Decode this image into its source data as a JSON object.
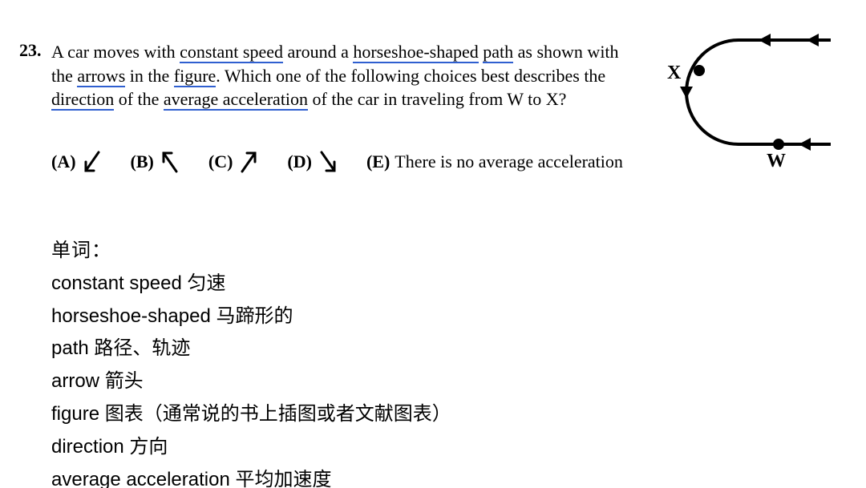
{
  "question": {
    "number": "23.",
    "line1_a": "A car moves with ",
    "line1_b": "constant speed",
    "line1_c": " around a ",
    "line1_d": "horseshoe-shaped",
    "line1_e": " ",
    "line1_f": "path",
    "line1_g": " as shown with",
    "line2_a": "the ",
    "line2_b": "arrows",
    "line2_c": " in the ",
    "line2_d": "figure",
    "line2_e": ".  Which one of the following choices best describes the",
    "line3_a": "direction",
    "line3_b": " of the ",
    "line3_c": "average acceleration",
    "line3_d": " of the car in traveling from W to X?",
    "underline_color": "#2f5fd0"
  },
  "choices": {
    "A_label": "(A)",
    "B_label": "(B)",
    "C_label": "(C)",
    "D_label": "(D)",
    "E_label": "(E)",
    "E_text": "There is no average acceleration",
    "arrow_color": "#000000",
    "A_dir": "sw",
    "B_dir": "nw",
    "C_dir": "ne",
    "D_dir": "se"
  },
  "vocab": {
    "header": "单词：",
    "items": [
      {
        "en": "constant speed",
        "zh": "匀速"
      },
      {
        "en": "horseshoe-shaped",
        "zh": "马蹄形的"
      },
      {
        "en": "path",
        "zh": "路径、轨迹"
      },
      {
        "en": "arrow",
        "zh": "箭头"
      },
      {
        "en": "figure",
        "zh": "图表（通常说的书上插图或者文献图表）"
      },
      {
        "en": "direction",
        "zh": "方向"
      },
      {
        "en": "average acceleration",
        "zh": "平均加速度"
      }
    ]
  },
  "figure": {
    "stroke": "#000000",
    "stroke_width": 4,
    "X_label": "X",
    "W_label": "W",
    "dot_radius": 5
  }
}
